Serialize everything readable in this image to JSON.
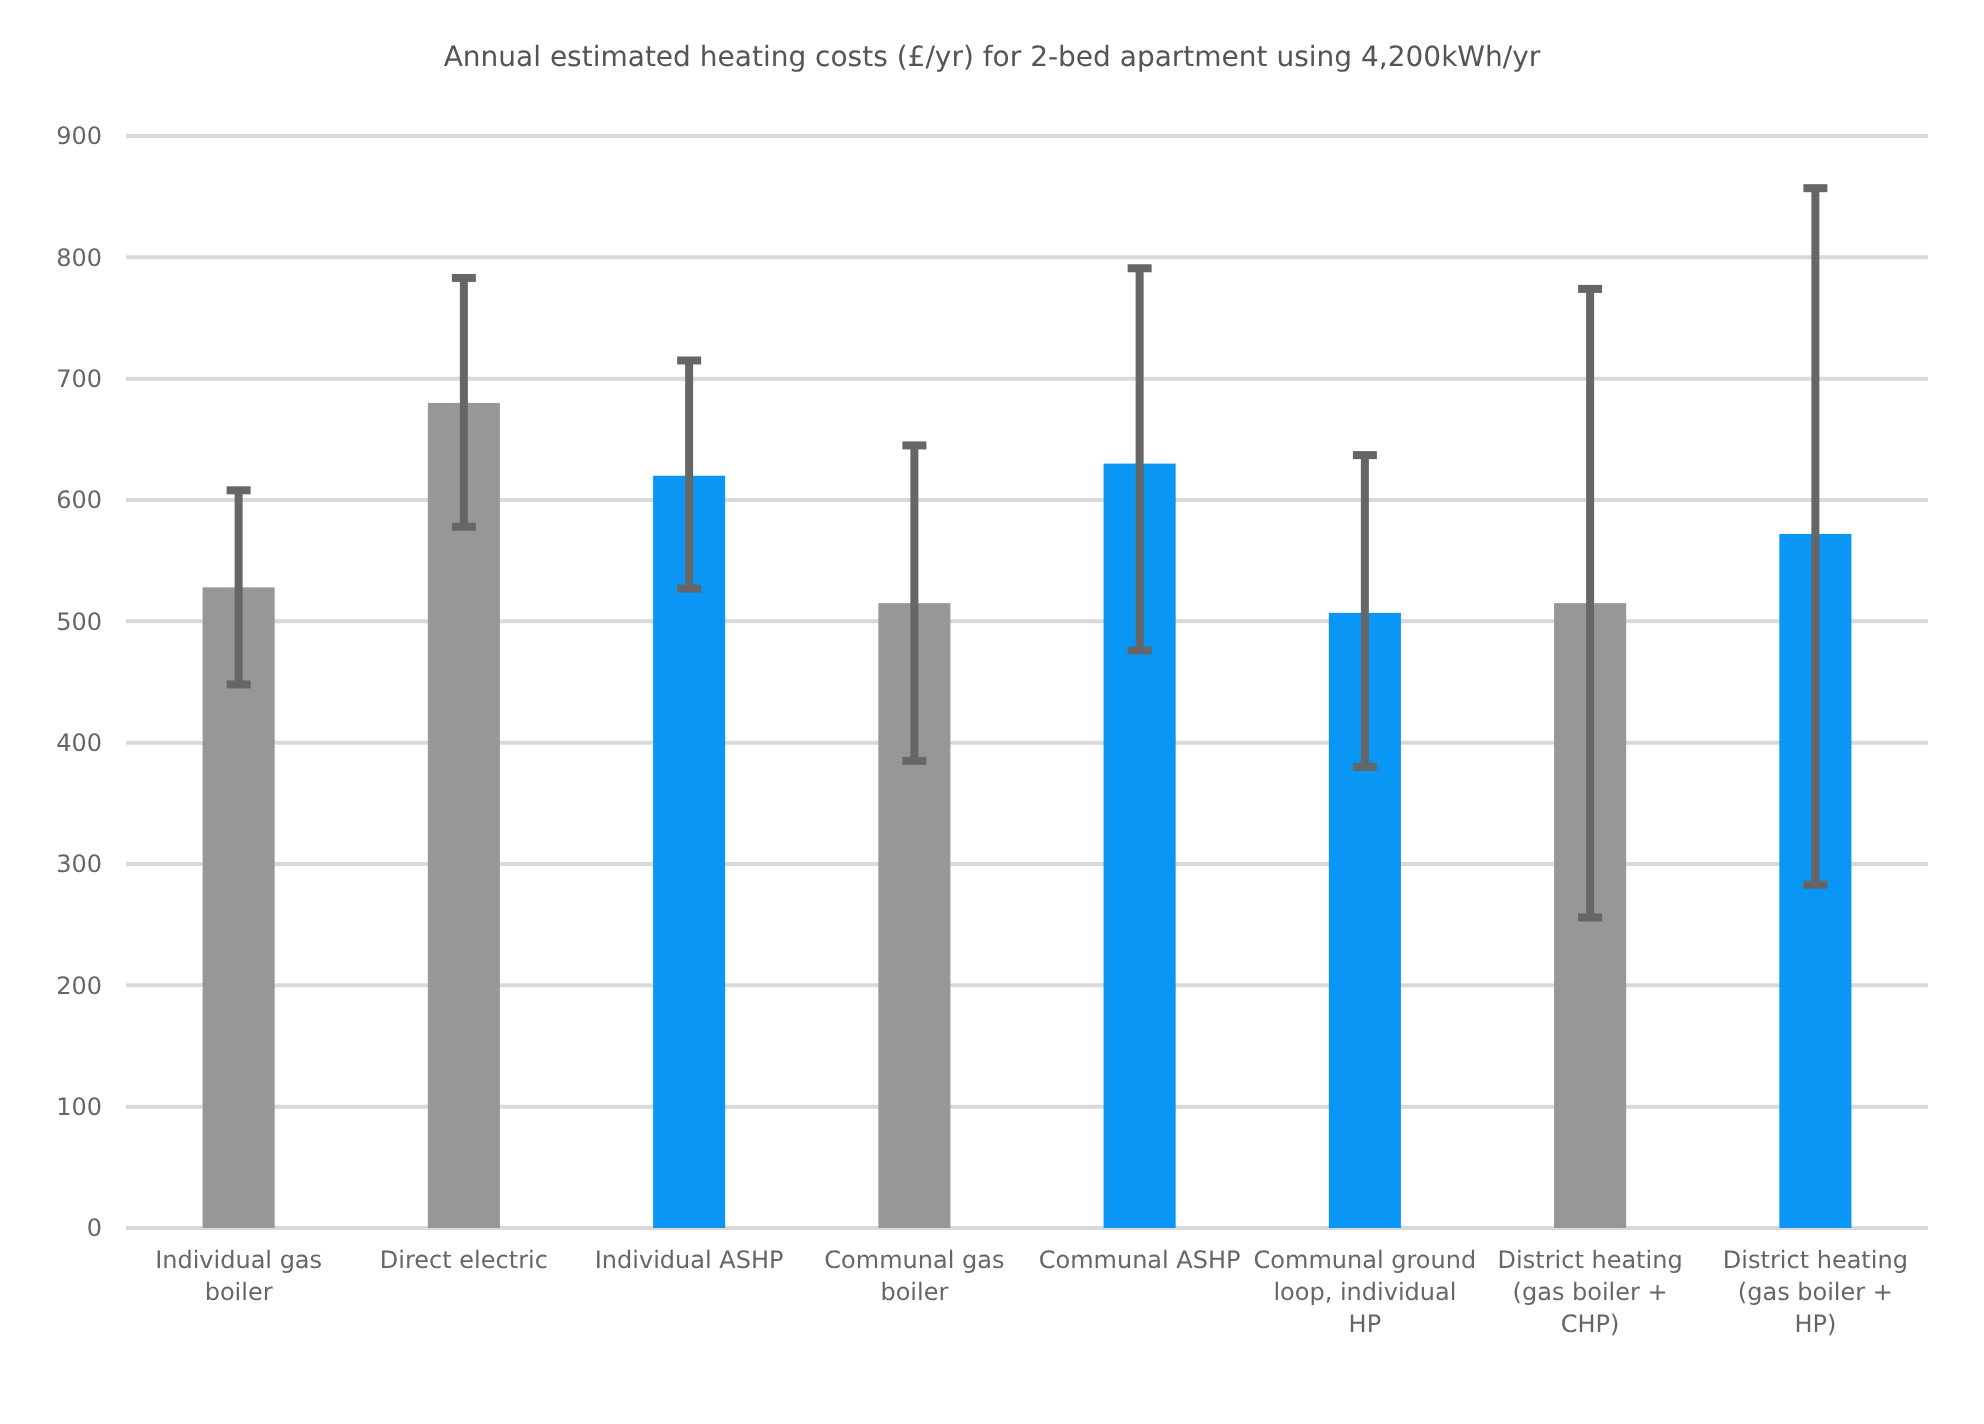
{
  "chart_data": {
    "type": "bar",
    "title": "Annual estimated heating costs (£/yr) for 2-bed apartment using 4,200kWh/yr",
    "categories": [
      "Individual gas boiler",
      "Direct electric",
      "Individual ASHP",
      "Communal gas boiler",
      "Communal ASHP",
      "Communal ground loop, individual HP",
      "District heating (gas boiler + CHP)",
      "District heating (gas boiler + HP)"
    ],
    "values": [
      528,
      680,
      620,
      515,
      630,
      507,
      515,
      572
    ],
    "colors": [
      "#959895",
      "#959895",
      "#0a96f5",
      "#959895",
      "#0a96f5",
      "#0a96f5",
      "#959895",
      "#0a96f5"
    ],
    "errors": [
      [
        448,
        608
      ],
      [
        578,
        783
      ],
      [
        527,
        715
      ],
      [
        385,
        645
      ],
      [
        476,
        791
      ],
      [
        380,
        637
      ],
      [
        256,
        774
      ],
      [
        283,
        857
      ]
    ],
    "ylim": [
      0,
      900
    ],
    "yticks": [
      0,
      100,
      200,
      300,
      400,
      500,
      600,
      700,
      800,
      900
    ],
    "grid": "y"
  }
}
